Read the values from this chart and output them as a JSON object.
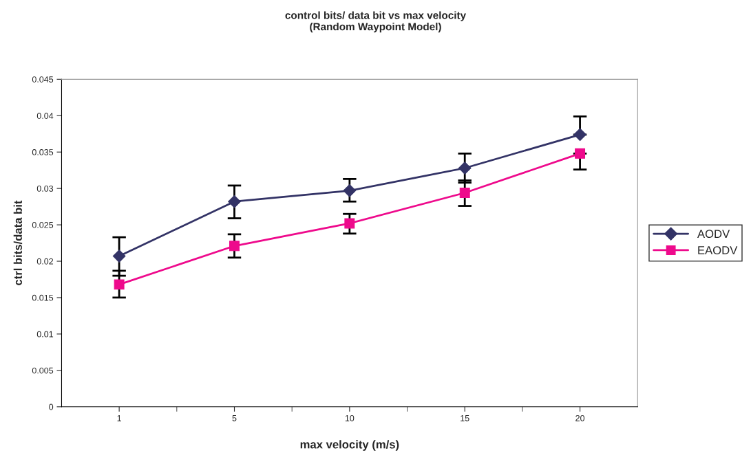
{
  "chart_data": {
    "type": "line",
    "title": "control bits/ data bit vs max velocity\n(Random Waypoint Model)",
    "xlabel": "max velocity (m/s)",
    "ylabel": "ctrl bits/data bit",
    "categories": [
      "1",
      "5",
      "10",
      "15",
      "20"
    ],
    "series": [
      {
        "name": "AODV",
        "color": "#333366",
        "marker": "diamond",
        "values": [
          0.0207,
          0.0282,
          0.0297,
          0.0328,
          0.0374
        ],
        "errors": [
          [
            0.018,
            0.0233
          ],
          [
            0.0259,
            0.0304
          ],
          [
            0.0282,
            0.0313
          ],
          [
            0.0308,
            0.0348
          ],
          [
            0.0374,
            0.0399
          ]
        ]
      },
      {
        "name": "EAODV",
        "color": "#ee0a8c",
        "marker": "square",
        "values": [
          0.0168,
          0.0221,
          0.0252,
          0.0294,
          0.0348
        ],
        "errors": [
          [
            0.015,
            0.0187
          ],
          [
            0.0205,
            0.0237
          ],
          [
            0.0238,
            0.0265
          ],
          [
            0.0276,
            0.0311
          ],
          [
            0.0326,
            0.0348
          ]
        ]
      }
    ],
    "ylim": [
      0,
      0.045
    ],
    "yticks": [
      0,
      0.005,
      0.01,
      0.015,
      0.02,
      0.025,
      0.03,
      0.035,
      0.04,
      0.045
    ],
    "grid": false,
    "legend": "right",
    "line_style": "solid"
  }
}
